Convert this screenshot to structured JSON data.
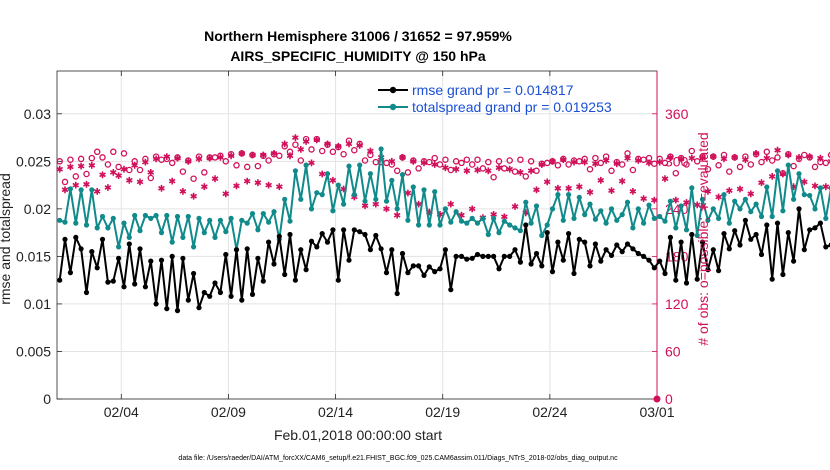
{
  "chart_data": {
    "type": "line",
    "title_line1": "Northern Hemisphere 31006 / 31652 = 97.959%",
    "title_line2": "AIRS_SPECIFIC_HUMIDITY @ 150 hPa",
    "xlabel": "Feb.01,2018 00:00:00 start",
    "ylabel_left": "rmse and totalspread",
    "ylabel_right": "# of obs: o=possible; ∗=evaluated",
    "footnote": "data file: /Users/raeder/DAI/ATM_forcXX/CAM6_setup/f.e21.FHIST_BGC.f09_025.CAM6assim.011/Diags_NTrS_2018-02/obs_diag_output.nc",
    "xlim": [
      1.0,
      29.0
    ],
    "ylim_left": [
      0,
      0.0345
    ],
    "ylim_right": [
      0,
      414
    ],
    "x_ticks": [
      {
        "value": 4,
        "label": "02/04"
      },
      {
        "value": 9,
        "label": "02/09"
      },
      {
        "value": 14,
        "label": "02/14"
      },
      {
        "value": 19,
        "label": "02/19"
      },
      {
        "value": 24,
        "label": "02/24"
      },
      {
        "value": 29,
        "label": "03/01"
      }
    ],
    "y_ticks_left": [
      {
        "value": 0,
        "label": "0"
      },
      {
        "value": 0.005,
        "label": "0.005"
      },
      {
        "value": 0.01,
        "label": "0.01"
      },
      {
        "value": 0.015,
        "label": "0.015"
      },
      {
        "value": 0.02,
        "label": "0.02"
      },
      {
        "value": 0.025,
        "label": "0.025"
      },
      {
        "value": 0.03,
        "label": "0.03"
      }
    ],
    "y_ticks_right": [
      {
        "value": 0,
        "label": "0"
      },
      {
        "value": 60,
        "label": "60"
      },
      {
        "value": 120,
        "label": "120"
      },
      {
        "value": 180,
        "label": "180"
      },
      {
        "value": 240,
        "label": "240"
      },
      {
        "value": 300,
        "label": "300"
      },
      {
        "value": 360,
        "label": "360"
      }
    ],
    "legend": [
      {
        "label": "rmse grand pr = 0.014817",
        "color": "#000000"
      },
      {
        "label": "totalspread grand pr = 0.019253",
        "color": "#108a8a"
      }
    ],
    "colors": {
      "rmse": "#000000",
      "spread": "#108a8a",
      "obs": "#d0105a",
      "grid": "#e3e3e3"
    },
    "x_start": 1.125,
    "x_step": 0.25,
    "series": [
      {
        "name": "rmse",
        "axis": "left",
        "values": [
          0.0125,
          0.0168,
          0.0133,
          0.017,
          0.0158,
          0.0112,
          0.0155,
          0.0138,
          0.0168,
          0.0123,
          0.0124,
          0.0148,
          0.0118,
          0.0163,
          0.0121,
          0.0158,
          0.0118,
          0.0145,
          0.01,
          0.0146,
          0.0095,
          0.015,
          0.0093,
          0.0148,
          0.0104,
          0.0132,
          0.0096,
          0.0112,
          0.0108,
          0.0122,
          0.0112,
          0.0152,
          0.0108,
          0.0157,
          0.0104,
          0.0158,
          0.011,
          0.0148,
          0.0124,
          0.0165,
          0.0142,
          0.0171,
          0.0131,
          0.0173,
          0.0125,
          0.0157,
          0.0136,
          0.0166,
          0.016,
          0.0174,
          0.0165,
          0.0178,
          0.0125,
          0.0178,
          0.0146,
          0.0178,
          0.0176,
          0.0173,
          0.0157,
          0.0172,
          0.0158,
          0.0133,
          0.0157,
          0.0111,
          0.0153,
          0.0133,
          0.014,
          0.014,
          0.013,
          0.0139,
          0.0134,
          0.0137,
          0.0157,
          0.0115,
          0.015,
          0.015,
          0.0147,
          0.0148,
          0.0152,
          0.015,
          0.015,
          0.015,
          0.0137,
          0.015,
          0.015,
          0.0157,
          0.0144,
          0.0183,
          0.0142,
          0.0153,
          0.014,
          0.0175,
          0.0134,
          0.0165,
          0.0146,
          0.0174,
          0.0132,
          0.0168,
          0.0165,
          0.014,
          0.0163,
          0.0145,
          0.0157,
          0.0151,
          0.0162,
          0.0155,
          0.0163,
          0.0158,
          0.0153,
          0.015,
          0.0146,
          0.0138,
          0.0145,
          0.0132,
          0.017,
          0.0125,
          0.0165,
          0.0122,
          0.0173,
          0.0126,
          0.0165,
          0.0136,
          0.0157,
          0.0135,
          0.0174,
          0.0158,
          0.0177,
          0.0162,
          0.0188,
          0.0168,
          0.0173,
          0.0152,
          0.0183,
          0.0126,
          0.0185,
          0.0131,
          0.0175,
          0.0145,
          0.02,
          0.0157,
          0.0178,
          0.018,
          0.0185,
          0.016,
          0.0162,
          0.0142,
          0.0183,
          0.026,
          0.0178,
          0.0172,
          0.0165,
          0.0275,
          0.017
        ]
      },
      {
        "name": "totalspread",
        "axis": "left",
        "values": [
          0.0188,
          0.0186,
          0.0221,
          0.0185,
          0.022,
          0.0183,
          0.022,
          0.018,
          0.0192,
          0.018,
          0.019,
          0.016,
          0.0185,
          0.017,
          0.0193,
          0.0177,
          0.0193,
          0.019,
          0.0193,
          0.0175,
          0.0193,
          0.0165,
          0.0192,
          0.017,
          0.0192,
          0.016,
          0.019,
          0.0175,
          0.0188,
          0.017,
          0.0188,
          0.0176,
          0.019,
          0.0157,
          0.0188,
          0.0185,
          0.0195,
          0.0178,
          0.0195,
          0.0186,
          0.0197,
          0.0168,
          0.021,
          0.0187,
          0.024,
          0.021,
          0.0246,
          0.02,
          0.0217,
          0.0215,
          0.0237,
          0.0198,
          0.0225,
          0.0205,
          0.0245,
          0.0215,
          0.0246,
          0.0208,
          0.0237,
          0.021,
          0.0263,
          0.0208,
          0.023,
          0.02,
          0.0236,
          0.0188,
          0.0223,
          0.0183,
          0.022,
          0.0183,
          0.0218,
          0.0183,
          0.02,
          0.0186,
          0.0197,
          0.0187,
          0.0185,
          0.019,
          0.0185,
          0.019,
          0.0173,
          0.019,
          0.0175,
          0.0187,
          0.0183,
          0.018,
          0.0177,
          0.0207,
          0.0185,
          0.0203,
          0.0172,
          0.0183,
          0.02,
          0.0215,
          0.0188,
          0.0215,
          0.019,
          0.0212,
          0.0194,
          0.0205,
          0.0189,
          0.0198,
          0.0185,
          0.02,
          0.0188,
          0.0194,
          0.0207,
          0.018,
          0.02,
          0.0185,
          0.0204,
          0.019,
          0.0192,
          0.0187,
          0.0208,
          0.018,
          0.0203,
          0.0178,
          0.0222,
          0.0172,
          0.021,
          0.0188,
          0.02,
          0.019,
          0.0215,
          0.0185,
          0.0208,
          0.02,
          0.021,
          0.0197,
          0.0205,
          0.0192,
          0.0223,
          0.0192,
          0.024,
          0.0198,
          0.0246,
          0.021,
          0.0237,
          0.0215,
          0.0214,
          0.02,
          0.0222,
          0.019,
          0.0222,
          0.0256,
          0.0235,
          0.0225,
          0.0241,
          0.0255,
          0.0228
        ]
      },
      {
        "name": "obs possible",
        "axis": "right",
        "values": [
          300,
          274,
          302,
          281,
          303,
          284,
          304,
          312,
          305,
          296,
          312,
          293,
          310,
          289,
          300,
          289,
          303,
          279,
          306,
          302,
          303,
          298,
          305,
          287,
          301,
          278,
          306,
          286,
          305,
          305,
          307,
          300,
          309,
          295,
          310,
          293,
          308,
          294,
          307,
          301,
          309,
          307,
          319,
          312,
          321,
          301,
          328,
          315,
          328,
          313,
          321,
          312,
          318,
          309,
          326,
          314,
          322,
          301,
          308,
          299,
          299,
          298,
          296,
          288,
          305,
          286,
          301,
          291,
          300,
          299,
          304,
          296,
          302,
          289,
          300,
          298,
          302,
          296,
          302,
          291,
          299,
          280,
          300,
          291,
          301,
          287,
          302,
          281,
          300,
          288,
          297,
          298,
          300,
          295,
          303,
          296,
          301,
          300,
          303,
          290,
          304,
          298,
          306,
          288,
          299,
          296,
          310,
          289,
          303,
          302,
          304,
          297,
          303,
          298,
          306,
          285,
          304,
          296,
          313,
          300,
          306,
          290,
          306,
          295,
          308,
          287,
          305,
          293,
          306,
          296,
          309,
          299,
          312,
          301,
          305,
          285,
          309,
          294,
          303,
          308,
          305,
          293,
          299,
          298,
          308,
          294,
          302,
          296,
          303,
          297,
          320
        ]
      },
      {
        "name": "obs evaluated",
        "axis": "right",
        "values": [
          290,
          264,
          293,
          270,
          294,
          271,
          295,
          262,
          283,
          267,
          286,
          282,
          290,
          276,
          295,
          274,
          299,
          286,
          303,
          266,
          306,
          275,
          304,
          262,
          300,
          256,
          303,
          268,
          304,
          278,
          305,
          259,
          307,
          269,
          310,
          275,
          308,
          273,
          308,
          270,
          310,
          268,
          322,
          307,
          330,
          315,
          325,
          298,
          327,
          284,
          322,
          276,
          319,
          265,
          322,
          255,
          320,
          244,
          313,
          246,
          305,
          240,
          300,
          232,
          305,
          260,
          300,
          246,
          298,
          236,
          296,
          233,
          292,
          246,
          290,
          232,
          288,
          240,
          289,
          229,
          288,
          233,
          292,
          230,
          290,
          243,
          286,
          235,
          288,
          264,
          296,
          274,
          300,
          266,
          302,
          266,
          299,
          268,
          299,
          261,
          297,
          276,
          301,
          263,
          297,
          275,
          304,
          262,
          301,
          253,
          298,
          251,
          299,
          278,
          305,
          251,
          303,
          248,
          304,
          245,
          304,
          262,
          306,
          255,
          303,
          263,
          305,
          265,
          302,
          259,
          310,
          273,
          304,
          281,
          314,
          284,
          308,
          268,
          305,
          274,
          306,
          269,
          304,
          268,
          300,
          285,
          309,
          282,
          302,
          290,
          320
        ]
      }
    ]
  }
}
